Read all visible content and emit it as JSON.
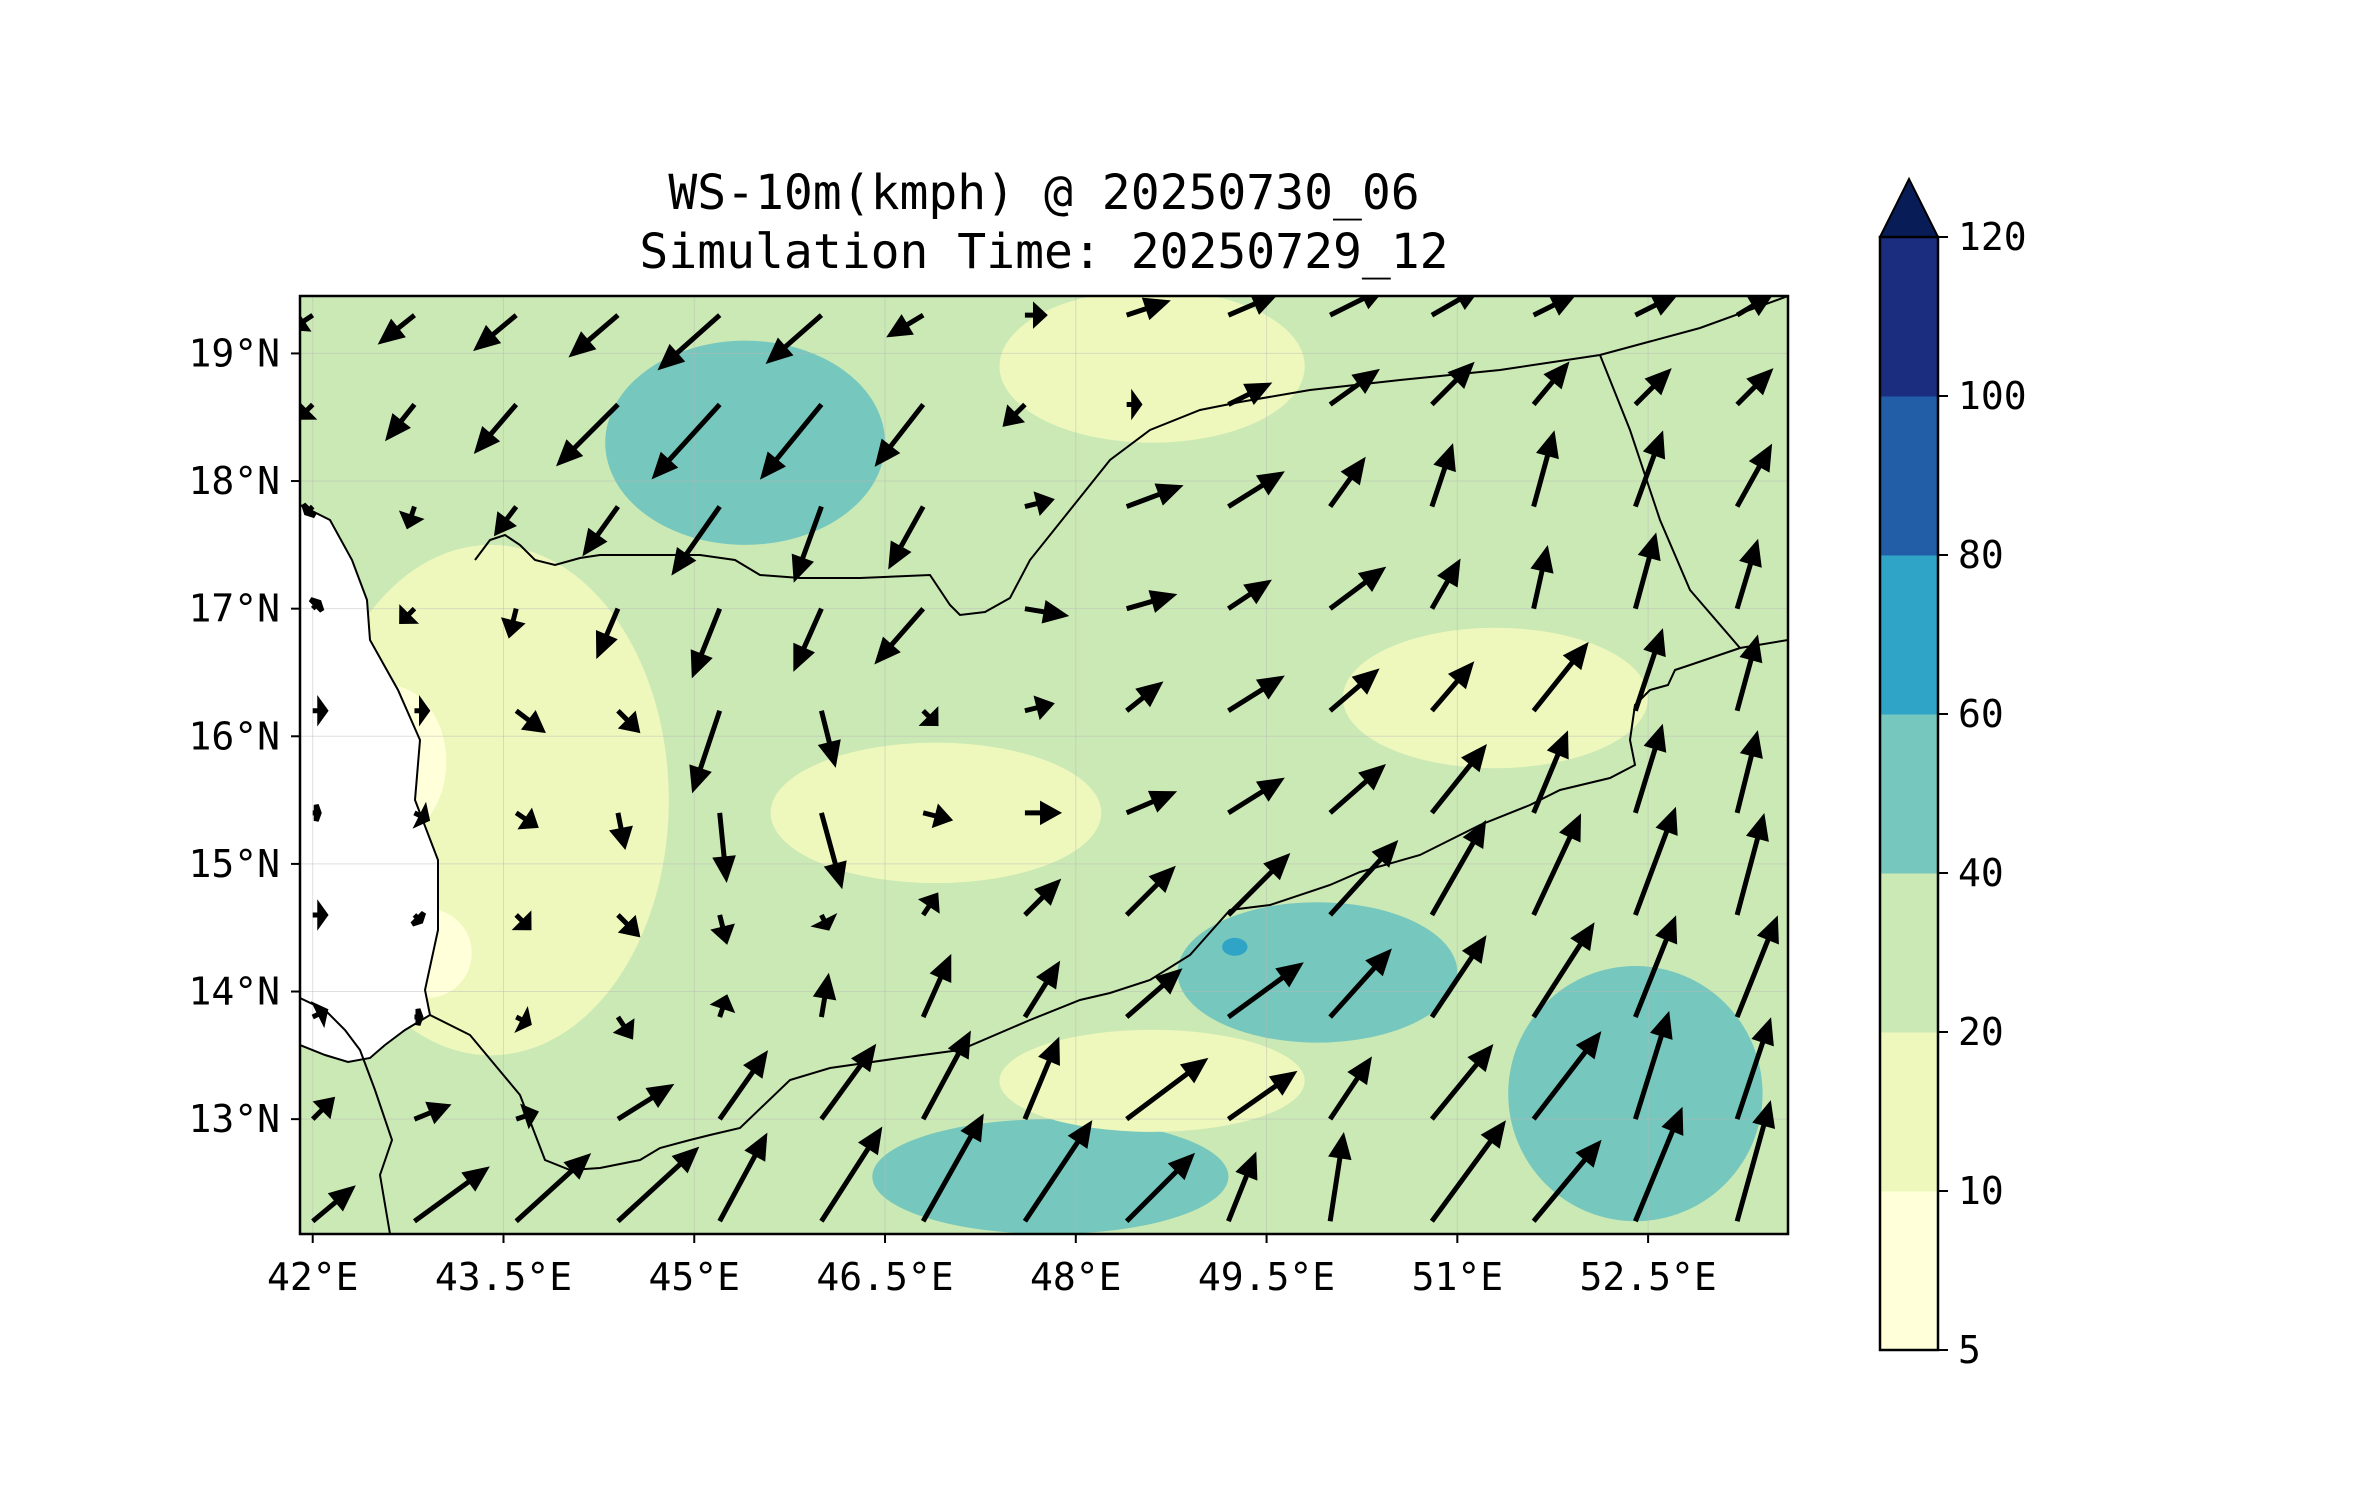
{
  "title": {
    "line1": "WS-10m(kmph) @ 20250730_06",
    "line2": "Simulation Time: 20250729_12"
  },
  "colors": {
    "levels": [
      "#ffffd9",
      "#eef8bd",
      "#cbe9b5",
      "#76c7bd",
      "#2fa4c6",
      "#225ea8",
      "#1a2d7f",
      "#081d58"
    ],
    "arrow": "#000000",
    "boundary": "#000000",
    "ocean": "#ffffff"
  },
  "chart_data": {
    "type": "heatmap",
    "variable": "WS-10m(kmph)",
    "valid_time": "20250730_06",
    "simulation_time": "20250729_12",
    "xlim": [
      41.9,
      53.6
    ],
    "ylim": [
      12.1,
      19.45
    ],
    "x_ticks": [
      42,
      43.5,
      45,
      46.5,
      48,
      49.5,
      51,
      52.5
    ],
    "x_tick_labels": [
      "42°E",
      "43.5°E",
      "45°E",
      "46.5°E",
      "48°E",
      "49.5°E",
      "51°E",
      "52.5°E"
    ],
    "y_ticks": [
      13,
      14,
      15,
      16,
      17,
      18,
      19
    ],
    "y_tick_labels": [
      "13°N",
      "14°N",
      "15°N",
      "16°N",
      "17°N",
      "18°N",
      "19°N"
    ],
    "grid": true,
    "colorbar": {
      "levels": [
        5,
        10,
        20,
        40,
        60,
        80,
        100,
        120
      ],
      "tick_labels": [
        "5",
        "10",
        "20",
        "40",
        "60",
        "80",
        "100",
        "120"
      ],
      "extend": "max",
      "placement": "right"
    },
    "regions": [
      {
        "range": [
          40,
          60
        ],
        "center": [
          45.4,
          18.3
        ],
        "radius_deg": [
          1.1,
          0.8
        ]
      },
      {
        "range": [
          40,
          60
        ],
        "center": [
          47.8,
          12.55
        ],
        "radius_deg": [
          1.4,
          0.45
        ]
      },
      {
        "range": [
          40,
          60
        ],
        "center": [
          49.9,
          14.15
        ],
        "radius_deg": [
          1.1,
          0.55
        ]
      },
      {
        "range": [
          40,
          60
        ],
        "center": [
          52.4,
          13.2
        ],
        "radius_deg": [
          1.0,
          1.0
        ]
      },
      {
        "range": [
          60,
          80
        ],
        "center": [
          49.25,
          14.35
        ],
        "radius_deg": [
          0.1,
          0.07
        ]
      },
      {
        "range": [
          10,
          20
        ],
        "center": [
          43.4,
          15.5
        ],
        "radius_deg": [
          1.4,
          2.0
        ]
      },
      {
        "range": [
          10,
          20
        ],
        "center": [
          46.9,
          15.4
        ],
        "radius_deg": [
          1.3,
          0.55
        ]
      },
      {
        "range": [
          10,
          20
        ],
        "center": [
          51.3,
          16.3
        ],
        "radius_deg": [
          1.2,
          0.55
        ]
      },
      {
        "range": [
          10,
          20
        ],
        "center": [
          48.6,
          18.9
        ],
        "radius_deg": [
          1.2,
          0.6
        ]
      },
      {
        "range": [
          10,
          20
        ],
        "center": [
          48.6,
          13.3
        ],
        "radius_deg": [
          1.2,
          0.4
        ]
      },
      {
        "range": [
          5,
          10
        ],
        "center": [
          42.6,
          15.8
        ],
        "radius_deg": [
          0.45,
          0.6
        ]
      },
      {
        "range": [
          5,
          10
        ],
        "center": [
          42.9,
          14.3
        ],
        "radius_deg": [
          0.35,
          0.35
        ]
      }
    ],
    "wind_arrows": {
      "lon": [
        42.0,
        42.8,
        43.6,
        44.4,
        45.2,
        46.0,
        46.8,
        47.6,
        48.4,
        49.2,
        50.0,
        50.8,
        51.6,
        52.4,
        53.2
      ],
      "lat": [
        12.2,
        13.0,
        13.8,
        14.6,
        15.4,
        16.2,
        17.0,
        17.8,
        18.6,
        19.3
      ],
      "u_kmph": [
        [
          12,
          22,
          22,
          24,
          14,
          18,
          18,
          20,
          20,
          8,
          4,
          22,
          20,
          14,
          10
        ],
        [
          6,
          10,
          6,
          16,
          14,
          16,
          14,
          10,
          24,
          20,
          12,
          18,
          20,
          10,
          10
        ],
        [
          4,
          2,
          4,
          4,
          2,
          2,
          8,
          10,
          16,
          22,
          18,
          16,
          18,
          12,
          12
        ],
        [
          4,
          2,
          4,
          6,
          2,
          2,
          4,
          10,
          14,
          18,
          20,
          16,
          14,
          12,
          8
        ],
        [
          2,
          4,
          6,
          2,
          2,
          6,
          8,
          10,
          14,
          16,
          16,
          16,
          10,
          8,
          6
        ],
        [
          4,
          4,
          8,
          6,
          -8,
          4,
          4,
          8,
          10,
          16,
          14,
          12,
          16,
          8,
          6
        ],
        [
          2,
          -4,
          -2,
          -6,
          -8,
          -8,
          -14,
          12,
          14,
          12,
          16,
          8,
          4,
          6,
          6
        ],
        [
          -2,
          -2,
          -6,
          -10,
          -14,
          -8,
          -10,
          8,
          16,
          16,
          10,
          6,
          6,
          8,
          10
        ],
        [
          -4,
          -8,
          -12,
          -18,
          -20,
          -18,
          -14,
          -6,
          4,
          12,
          14,
          12,
          10,
          10,
          10
        ],
        [
          -6,
          -10,
          -12,
          -14,
          -18,
          -16,
          -10,
          6,
          12,
          14,
          16,
          14,
          12,
          12,
          10
        ]
      ],
      "v_kmph": [
        [
          10,
          16,
          20,
          22,
          26,
          28,
          32,
          30,
          20,
          20,
          26,
          30,
          24,
          34,
          36
        ],
        [
          6,
          4,
          2,
          10,
          20,
          22,
          26,
          24,
          18,
          14,
          18,
          22,
          26,
          32,
          30
        ],
        [
          2,
          0,
          -2,
          -6,
          6,
          12,
          18,
          16,
          14,
          16,
          20,
          24,
          28,
          30,
          30
        ],
        [
          0,
          -2,
          -4,
          -6,
          -8,
          -4,
          6,
          10,
          14,
          18,
          22,
          28,
          30,
          32,
          30
        ],
        [
          0,
          -2,
          -4,
          -10,
          -20,
          -22,
          -2,
          0,
          6,
          10,
          14,
          20,
          24,
          26,
          24
        ],
        [
          0,
          0,
          -6,
          -6,
          -24,
          -16,
          -4,
          2,
          8,
          10,
          12,
          14,
          20,
          24,
          22
        ],
        [
          2,
          -4,
          -8,
          -14,
          -20,
          -18,
          -16,
          -2,
          4,
          8,
          12,
          14,
          18,
          22,
          20
        ],
        [
          -2,
          -6,
          -8,
          -14,
          -20,
          -22,
          -18,
          2,
          6,
          10,
          14,
          18,
          22,
          22,
          18
        ],
        [
          -4,
          -10,
          -14,
          -18,
          -22,
          -22,
          -18,
          -6,
          0,
          6,
          10,
          12,
          12,
          10,
          10
        ],
        [
          -4,
          -8,
          -10,
          -12,
          -16,
          -14,
          -6,
          0,
          4,
          6,
          8,
          8,
          6,
          6,
          6
        ]
      ]
    }
  }
}
